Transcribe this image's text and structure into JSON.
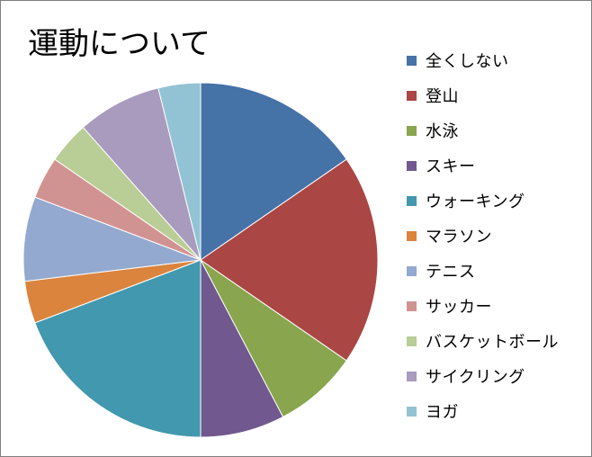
{
  "chart_data": {
    "type": "pie",
    "title": "運動について",
    "start_angle": "top",
    "direction": "clockwise",
    "legend_position": "right",
    "categories": [
      "全くしない",
      "登山",
      "水泳",
      "スキー",
      "ウォーキング",
      "マラソン",
      "テニス",
      "サッカー",
      "バスケットボール",
      "サイクリング",
      "ヨガ"
    ],
    "values": [
      4,
      5,
      2,
      2,
      5,
      1,
      2,
      1,
      1,
      2,
      1
    ],
    "colors": [
      "#4572A7",
      "#AA4643",
      "#89A54E",
      "#71588F",
      "#4198AF",
      "#DB843D",
      "#93A9CF",
      "#D19392",
      "#B9CD96",
      "#A99BBD",
      "#92C3D4"
    ]
  }
}
